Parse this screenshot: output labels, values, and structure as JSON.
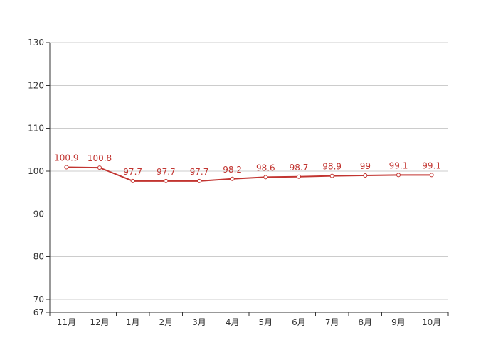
{
  "chart_data": {
    "type": "line",
    "categories": [
      "11月",
      "12月",
      "1月",
      "2月",
      "3月",
      "4月",
      "5月",
      "6月",
      "7月",
      "8月",
      "9月",
      "10月"
    ],
    "series": [
      {
        "values": [
          100.9,
          100.8,
          97.7,
          97.7,
          97.7,
          98.2,
          98.6,
          98.7,
          98.9,
          99,
          99.1,
          99.1
        ],
        "labels": [
          "100.9",
          "100.8",
          "97.7",
          "97.7",
          "97.7",
          "98.2",
          "98.6",
          "98.7",
          "98.9",
          "99",
          "99.1",
          "99.1"
        ],
        "color": "#c23531"
      }
    ],
    "y_ticks": [
      67,
      70,
      80,
      90,
      100,
      110,
      120,
      130
    ],
    "ylim": [
      67,
      130
    ],
    "title": "",
    "xlabel": "",
    "ylabel": "",
    "grid": true,
    "grid_color": "#cccccc",
    "axis_color": "#333333"
  }
}
